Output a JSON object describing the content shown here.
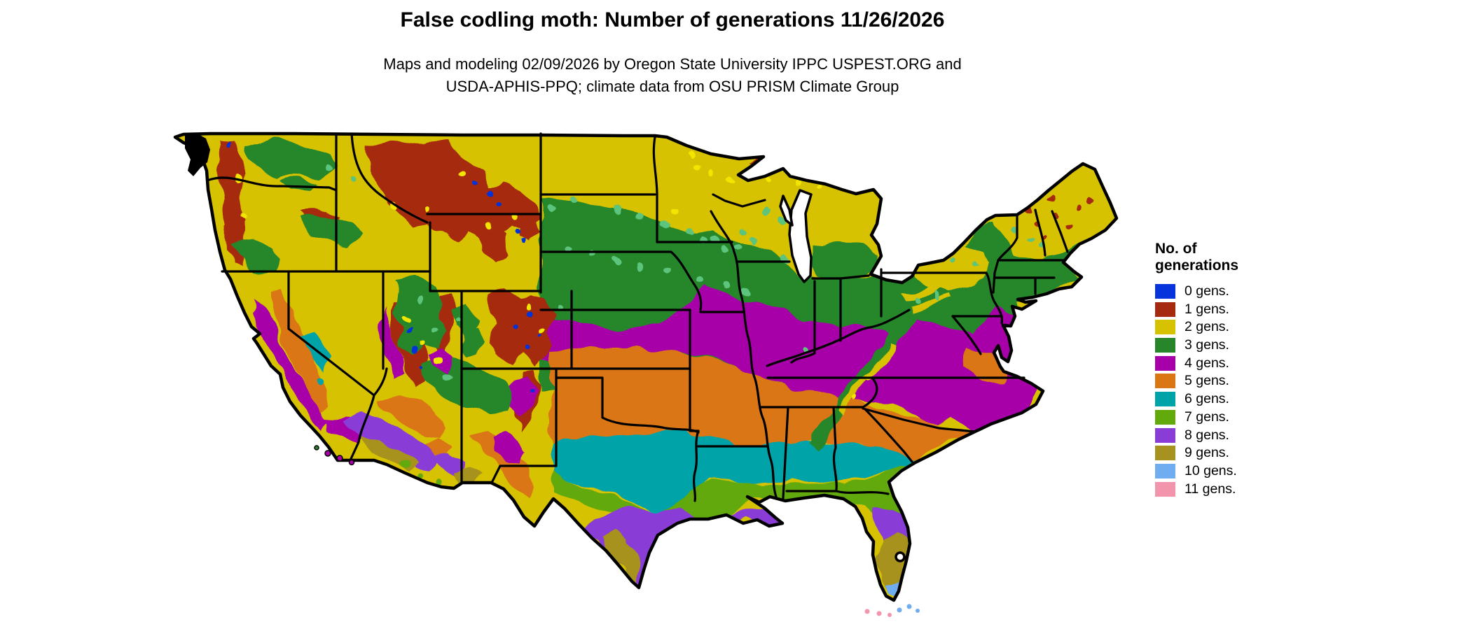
{
  "header": {
    "title": "False codling moth: Number of generations 11/26/2026",
    "subtitle_line1": "Maps and modeling 02/09/2026 by Oregon State University IPPC USPEST.ORG and",
    "subtitle_line2": "USDA-APHIS-PPQ; climate data from OSU PRISM Climate Group"
  },
  "legend": {
    "title_line1": "No. of",
    "title_line2": "generations",
    "items": [
      {
        "label": "0 gens.",
        "color": "#0533DC"
      },
      {
        "label": "1 gens.",
        "color": "#A62A10"
      },
      {
        "label": "2 gens.",
        "color": "#D6C200"
      },
      {
        "label": "3 gens.",
        "color": "#27862A"
      },
      {
        "label": "4 gens.",
        "color": "#A800A8"
      },
      {
        "label": "5 gens.",
        "color": "#DA7613"
      },
      {
        "label": "6 gens.",
        "color": "#00A4A8"
      },
      {
        "label": "7 gens.",
        "color": "#62A90C"
      },
      {
        "label": "8 gens.",
        "color": "#8A3DD6"
      },
      {
        "label": "9 gens.",
        "color": "#A6921F"
      },
      {
        "label": "10 gens.",
        "color": "#70ADF0"
      },
      {
        "label": "11 gens.",
        "color": "#F295AC"
      }
    ]
  },
  "map": {
    "description": "Continental United States choropleth of false codling moth generations",
    "background_color": "#FFFFFF",
    "border_color": "#000000",
    "extra_colors": {
      "light_green_speckle": "#5BC47B",
      "bright_yellow_speckle": "#F2E500",
      "light_orange_patch": "#F09A4A"
    }
  }
}
